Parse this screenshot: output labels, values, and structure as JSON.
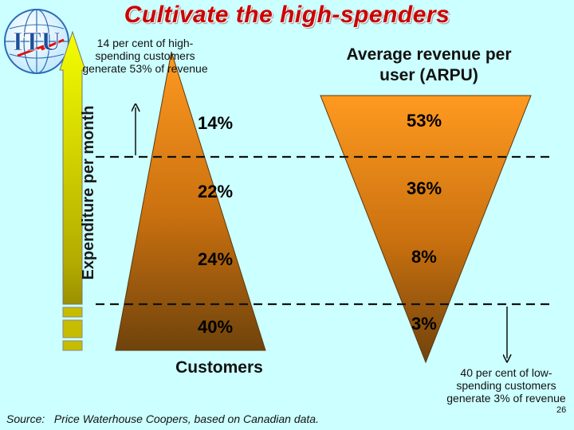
{
  "title": "Cultivate the high-spenders",
  "logo_text": "ITU",
  "axis_label": "Expenditure per month",
  "top_note": "14 per cent of high-spending customers generate 53% of revenue",
  "bottom_note": "40 per cent of low-spending customers generate 3% of revenue",
  "arpu_title": "Average revenue per user (ARPU)",
  "customers_label": "Customers",
  "customer_shares": [
    "14%",
    "22%",
    "24%",
    "40%"
  ],
  "revenue_shares": [
    "53%",
    "36%",
    "8%",
    "3%"
  ],
  "source": "Source:   Price Waterhouse Coopers, based on Canadian data.",
  "page_number": "26",
  "colors": {
    "title": "#cc0000",
    "background": "#ccffff",
    "shape_light": "#ff9922",
    "shape_dark": "#7a4a0e",
    "arrow_top": "#f4ff00",
    "arrow_bottom": "#aa9900"
  }
}
